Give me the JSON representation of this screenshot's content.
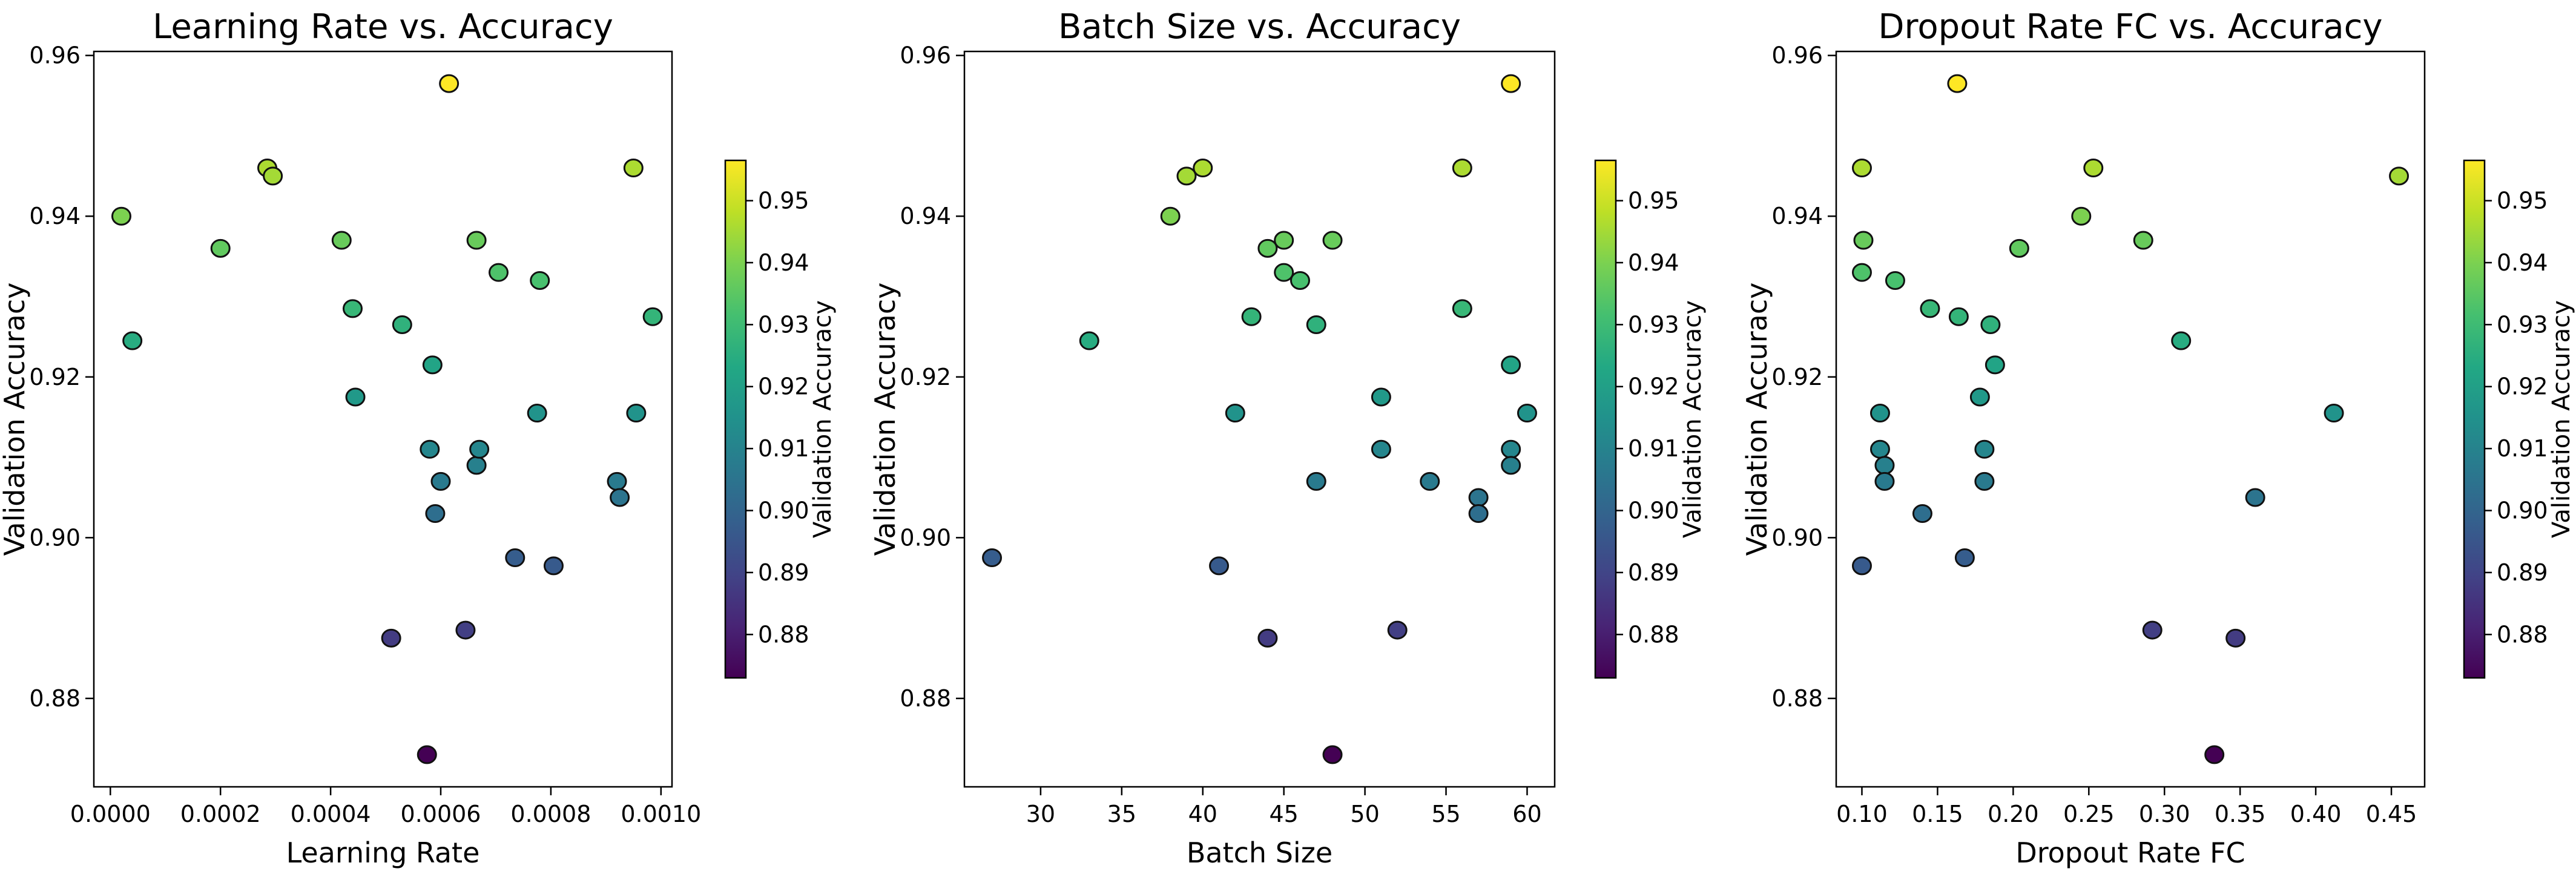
{
  "colorbar": {
    "min": 0.873,
    "max": 0.9565,
    "ticks": [
      "0.88",
      "0.89",
      "0.90",
      "0.91",
      "0.92",
      "0.93",
      "0.94",
      "0.95"
    ],
    "tick_values": [
      0.88,
      0.89,
      0.9,
      0.91,
      0.92,
      0.93,
      0.94,
      0.95
    ],
    "label": "Validation Accuracy",
    "colormap": "viridis"
  },
  "chart_data": [
    {
      "type": "scatter",
      "title": "Learning Rate vs. Accuracy",
      "xlabel": "Learning Rate",
      "ylabel": "Validation Accuracy",
      "xlim": [
        -3e-05,
        0.00102
      ],
      "ylim": [
        0.869,
        0.9605
      ],
      "xticks": [
        "0.0000",
        "0.0002",
        "0.0004",
        "0.0006",
        "0.0008",
        "0.0010"
      ],
      "xtick_values": [
        0.0,
        0.0002,
        0.0004,
        0.0006,
        0.0008,
        0.001
      ],
      "yticks": [
        "0.88",
        "0.90",
        "0.92",
        "0.94",
        "0.96"
      ],
      "ytick_values": [
        0.88,
        0.9,
        0.92,
        0.94,
        0.96
      ],
      "points": [
        {
          "x": 2e-05,
          "y": 0.94
        },
        {
          "x": 4e-05,
          "y": 0.9245
        },
        {
          "x": 0.0002,
          "y": 0.936
        },
        {
          "x": 0.000285,
          "y": 0.946
        },
        {
          "x": 0.000295,
          "y": 0.945
        },
        {
          "x": 0.00042,
          "y": 0.937
        },
        {
          "x": 0.00044,
          "y": 0.9285
        },
        {
          "x": 0.000445,
          "y": 0.9175
        },
        {
          "x": 0.00051,
          "y": 0.8875
        },
        {
          "x": 0.00053,
          "y": 0.9265
        },
        {
          "x": 0.000575,
          "y": 0.873
        },
        {
          "x": 0.00058,
          "y": 0.911
        },
        {
          "x": 0.000585,
          "y": 0.9215
        },
        {
          "x": 0.00059,
          "y": 0.903
        },
        {
          "x": 0.0006,
          "y": 0.907
        },
        {
          "x": 0.000615,
          "y": 0.9565
        },
        {
          "x": 0.000645,
          "y": 0.8885
        },
        {
          "x": 0.000665,
          "y": 0.909
        },
        {
          "x": 0.000665,
          "y": 0.937
        },
        {
          "x": 0.00067,
          "y": 0.911
        },
        {
          "x": 0.000705,
          "y": 0.933
        },
        {
          "x": 0.000735,
          "y": 0.8975
        },
        {
          "x": 0.000775,
          "y": 0.9155
        },
        {
          "x": 0.00078,
          "y": 0.932
        },
        {
          "x": 0.000805,
          "y": 0.8965
        },
        {
          "x": 0.00092,
          "y": 0.907
        },
        {
          "x": 0.000925,
          "y": 0.905
        },
        {
          "x": 0.00095,
          "y": 0.946
        },
        {
          "x": 0.000955,
          "y": 0.9155
        },
        {
          "x": 0.000985,
          "y": 0.9275
        }
      ]
    },
    {
      "type": "scatter",
      "title": "Batch Size vs. Accuracy",
      "xlabel": "Batch Size",
      "ylabel": "Validation Accuracy",
      "xlim": [
        25.3,
        61.7
      ],
      "ylim": [
        0.869,
        0.9605
      ],
      "xticks": [
        "30",
        "35",
        "40",
        "45",
        "50",
        "55",
        "60"
      ],
      "xtick_values": [
        30,
        35,
        40,
        45,
        50,
        55,
        60
      ],
      "yticks": [
        "0.88",
        "0.90",
        "0.92",
        "0.94",
        "0.96"
      ],
      "ytick_values": [
        0.88,
        0.9,
        0.92,
        0.94,
        0.96
      ],
      "points": [
        {
          "x": 27,
          "y": 0.8975
        },
        {
          "x": 33,
          "y": 0.9245
        },
        {
          "x": 38,
          "y": 0.94
        },
        {
          "x": 39,
          "y": 0.945
        },
        {
          "x": 40,
          "y": 0.946
        },
        {
          "x": 41,
          "y": 0.8965
        },
        {
          "x": 42,
          "y": 0.9155
        },
        {
          "x": 43,
          "y": 0.9275
        },
        {
          "x": 44,
          "y": 0.936
        },
        {
          "x": 44,
          "y": 0.8875
        },
        {
          "x": 45,
          "y": 0.937
        },
        {
          "x": 45,
          "y": 0.933
        },
        {
          "x": 46,
          "y": 0.932
        },
        {
          "x": 47,
          "y": 0.9265
        },
        {
          "x": 47,
          "y": 0.907
        },
        {
          "x": 48,
          "y": 0.937
        },
        {
          "x": 48,
          "y": 0.873
        },
        {
          "x": 51,
          "y": 0.9175
        },
        {
          "x": 51,
          "y": 0.911
        },
        {
          "x": 52,
          "y": 0.8885
        },
        {
          "x": 54,
          "y": 0.907
        },
        {
          "x": 56,
          "y": 0.946
        },
        {
          "x": 56,
          "y": 0.9285
        },
        {
          "x": 57,
          "y": 0.905
        },
        {
          "x": 57,
          "y": 0.903
        },
        {
          "x": 59,
          "y": 0.9565
        },
        {
          "x": 59,
          "y": 0.9215
        },
        {
          "x": 59,
          "y": 0.911
        },
        {
          "x": 59,
          "y": 0.909
        },
        {
          "x": 60,
          "y": 0.9155
        }
      ]
    },
    {
      "type": "scatter",
      "title": "Dropout Rate FC vs. Accuracy",
      "xlabel": "Dropout Rate FC",
      "ylabel": "Validation Accuracy",
      "xlim": [
        0.083,
        0.472
      ],
      "ylim": [
        0.869,
        0.9605
      ],
      "xticks": [
        "0.10",
        "0.15",
        "0.20",
        "0.25",
        "0.30",
        "0.35",
        "0.40",
        "0.45"
      ],
      "xtick_values": [
        0.1,
        0.15,
        0.2,
        0.25,
        0.3,
        0.35,
        0.4,
        0.45
      ],
      "yticks": [
        "0.88",
        "0.90",
        "0.92",
        "0.94",
        "0.96"
      ],
      "ytick_values": [
        0.88,
        0.9,
        0.92,
        0.94,
        0.96
      ],
      "points": [
        {
          "x": 0.1,
          "y": 0.946
        },
        {
          "x": 0.101,
          "y": 0.937
        },
        {
          "x": 0.1,
          "y": 0.933
        },
        {
          "x": 0.1,
          "y": 0.8965
        },
        {
          "x": 0.112,
          "y": 0.9155
        },
        {
          "x": 0.112,
          "y": 0.911
        },
        {
          "x": 0.115,
          "y": 0.909
        },
        {
          "x": 0.115,
          "y": 0.907
        },
        {
          "x": 0.122,
          "y": 0.932
        },
        {
          "x": 0.14,
          "y": 0.903
        },
        {
          "x": 0.145,
          "y": 0.9285
        },
        {
          "x": 0.163,
          "y": 0.9565
        },
        {
          "x": 0.164,
          "y": 0.9275
        },
        {
          "x": 0.168,
          "y": 0.8975
        },
        {
          "x": 0.178,
          "y": 0.9175
        },
        {
          "x": 0.181,
          "y": 0.911
        },
        {
          "x": 0.181,
          "y": 0.907
        },
        {
          "x": 0.185,
          "y": 0.9265
        },
        {
          "x": 0.188,
          "y": 0.9215
        },
        {
          "x": 0.204,
          "y": 0.936
        },
        {
          "x": 0.245,
          "y": 0.94
        },
        {
          "x": 0.253,
          "y": 0.946
        },
        {
          "x": 0.286,
          "y": 0.937
        },
        {
          "x": 0.292,
          "y": 0.8885
        },
        {
          "x": 0.311,
          "y": 0.9245
        },
        {
          "x": 0.333,
          "y": 0.873
        },
        {
          "x": 0.347,
          "y": 0.8875
        },
        {
          "x": 0.36,
          "y": 0.905
        },
        {
          "x": 0.412,
          "y": 0.9155
        },
        {
          "x": 0.455,
          "y": 0.945
        }
      ]
    }
  ]
}
